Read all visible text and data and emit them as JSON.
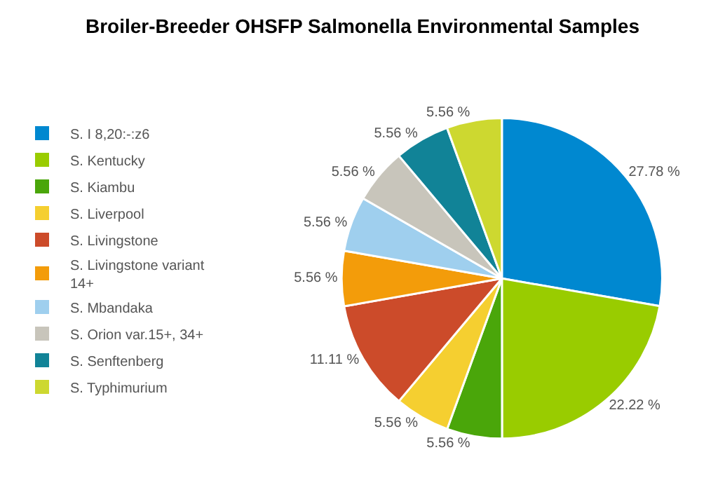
{
  "chart_data": {
    "type": "pie",
    "title": "Broiler-Breeder OHSFP Salmonella Environmental Samples",
    "categories": [
      "S. I 8,20:-:z6",
      "S. Kentucky",
      "S. Kiambu",
      "S. Liverpool",
      "S. Livingstone",
      "S. Livingstone variant 14+",
      "S. Mbandaka",
      "S. Orion var.15+, 34+",
      "S. Senftenberg",
      "S. Typhimurium"
    ],
    "values": [
      27.78,
      22.22,
      5.56,
      5.56,
      11.11,
      5.56,
      5.56,
      5.56,
      5.56,
      5.56
    ],
    "value_labels": [
      "27.78 %",
      "22.22 %",
      "5.56 %",
      "5.56 %",
      "11.11 %",
      "5.56 %",
      "5.56 %",
      "5.56 %",
      "5.56 %",
      "5.56 %"
    ],
    "colors": [
      "#0088d0",
      "#99cc00",
      "#4aa60a",
      "#f5cf30",
      "#cc4b2a",
      "#f39c0a",
      "#9fcfee",
      "#c8c5bb",
      "#118397",
      "#cdd830"
    ],
    "legend": "left"
  }
}
